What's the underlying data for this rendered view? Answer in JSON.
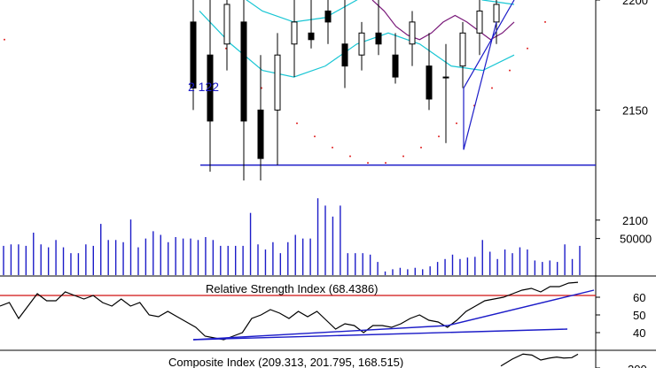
{
  "chart_data": [
    {
      "type": "candlestick",
      "panel": "price",
      "ylim": [
        2075,
        2200
      ],
      "y_ticks": [
        2100,
        2150,
        2200
      ],
      "y_tick_labels": [
        "2100",
        "2150",
        "2200"
      ],
      "annotation": {
        "text": "2 122",
        "value": 2122
      },
      "support_line_value": 2125,
      "colors": {
        "candle": "#000000",
        "line": "#1c1cc8",
        "band": "#19c6d4",
        "ma": "#7a1a7a",
        "sar": "#e02020"
      },
      "candles": [
        {
          "o": 2190,
          "h": 2205,
          "l": 2150,
          "c": 2160
        },
        {
          "o": 2175,
          "h": 2200,
          "l": 2122,
          "c": 2145
        },
        {
          "o": 2180,
          "h": 2205,
          "l": 2168,
          "c": 2198
        },
        {
          "o": 2190,
          "h": 2205,
          "l": 2118,
          "c": 2145
        },
        {
          "o": 2150,
          "h": 2175,
          "l": 2118,
          "c": 2128
        },
        {
          "o": 2150,
          "h": 2185,
          "l": 2125,
          "c": 2175
        },
        {
          "o": 2180,
          "h": 2200,
          "l": 2165,
          "c": 2190
        },
        {
          "o": 2185,
          "h": 2200,
          "l": 2178,
          "c": 2182
        },
        {
          "o": 2195,
          "h": 2205,
          "l": 2180,
          "c": 2190
        },
        {
          "o": 2180,
          "h": 2200,
          "l": 2160,
          "c": 2170
        },
        {
          "o": 2175,
          "h": 2190,
          "l": 2168,
          "c": 2185
        },
        {
          "o": 2185,
          "h": 2200,
          "l": 2175,
          "c": 2180
        },
        {
          "o": 2175,
          "h": 2185,
          "l": 2162,
          "c": 2165
        },
        {
          "o": 2180,
          "h": 2195,
          "l": 2170,
          "c": 2190
        },
        {
          "o": 2170,
          "h": 2185,
          "l": 2150,
          "c": 2155
        },
        {
          "o": 2165,
          "h": 2180,
          "l": 2135,
          "c": 2165
        },
        {
          "o": 2170,
          "h": 2190,
          "l": 2160,
          "c": 2185
        },
        {
          "o": 2185,
          "h": 2200,
          "l": 2175,
          "c": 2195
        },
        {
          "o": 2190,
          "h": 2205,
          "l": 2180,
          "c": 2198
        }
      ],
      "sar_values": [
        2178,
        2168,
        2160,
        2152,
        2144,
        2138,
        2133,
        2129,
        2126,
        2126,
        2129,
        2133,
        2138,
        2144,
        2152,
        2160,
        2168,
        2178,
        2190,
        2200
      ],
      "band_upper": [
        2215,
        2205,
        2195,
        2190,
        2192,
        2200,
        2210,
        2212,
        2205,
        2200,
        2198
      ],
      "band_lower": [
        2195,
        2180,
        2168,
        2165,
        2170,
        2180,
        2185,
        2180,
        2170,
        2168,
        2175
      ],
      "ma": [
        2200,
        2195,
        2188,
        2184,
        2182,
        2185,
        2190,
        2193,
        2190,
        2186,
        2182,
        2185,
        2190
      ]
    },
    {
      "type": "bar",
      "panel": "volume",
      "ylim": [
        0,
        110000
      ],
      "y_ticks": [
        50000
      ],
      "y_tick_labels": [
        "50000"
      ],
      "values": [
        40000,
        42000,
        42000,
        40000,
        58000,
        42000,
        38000,
        48000,
        38000,
        30000,
        30000,
        42000,
        40000,
        70000,
        48000,
        48000,
        45000,
        76000,
        38000,
        50000,
        60000,
        55000,
        45000,
        52000,
        50000,
        50000,
        48000,
        52000,
        48000,
        40000,
        40000,
        40000,
        40000,
        85000,
        42000,
        35000,
        45000,
        30000,
        45000,
        55000,
        50000,
        50000,
        105000,
        95000,
        80000,
        95000,
        30000,
        30000,
        30000,
        28000,
        18000,
        5000,
        8000,
        10000,
        8000,
        10000,
        8000,
        12000,
        18000,
        22000,
        28000,
        22000,
        24000,
        25000,
        48000,
        32000,
        22000,
        35000,
        30000,
        38000,
        35000,
        20000,
        18000,
        20000,
        18000,
        42000,
        22000,
        40000
      ]
    },
    {
      "type": "line",
      "panel": "rsi",
      "title": "Relative Strength Index (68.4386)",
      "ylim": [
        30,
        72
      ],
      "y_ticks": [
        40,
        50,
        60
      ],
      "y_tick_labels": [
        "40",
        "50",
        "60"
      ],
      "reference_line": 61,
      "values": [
        55,
        57,
        48,
        55,
        62,
        58,
        58,
        63,
        61,
        59,
        61,
        57,
        55,
        59,
        55,
        57,
        50,
        49,
        52,
        49,
        46,
        43,
        38,
        37,
        36,
        38,
        40,
        48,
        50,
        53,
        51,
        48,
        52,
        49,
        52,
        47,
        42,
        45,
        44,
        40,
        44,
        44,
        43,
        45,
        48,
        50,
        47,
        46,
        43,
        47,
        52,
        55,
        58,
        59,
        60,
        62,
        64,
        65,
        63,
        66,
        66,
        68,
        68.4386
      ],
      "trend_lines": [
        {
          "y1": 36,
          "y2": 44
        },
        {
          "y1": 44,
          "y2": 64
        },
        {
          "y1": 36,
          "y2": 42
        }
      ]
    },
    {
      "type": "line",
      "panel": "composite",
      "title": "Composite Index (209.313, 201.795, 168.515)",
      "y_ticks": [
        200
      ],
      "y_tick_labels": [
        "200"
      ],
      "values": [
        150,
        185,
        210,
        205,
        180,
        190,
        195,
        190,
        192,
        209.313
      ]
    }
  ]
}
